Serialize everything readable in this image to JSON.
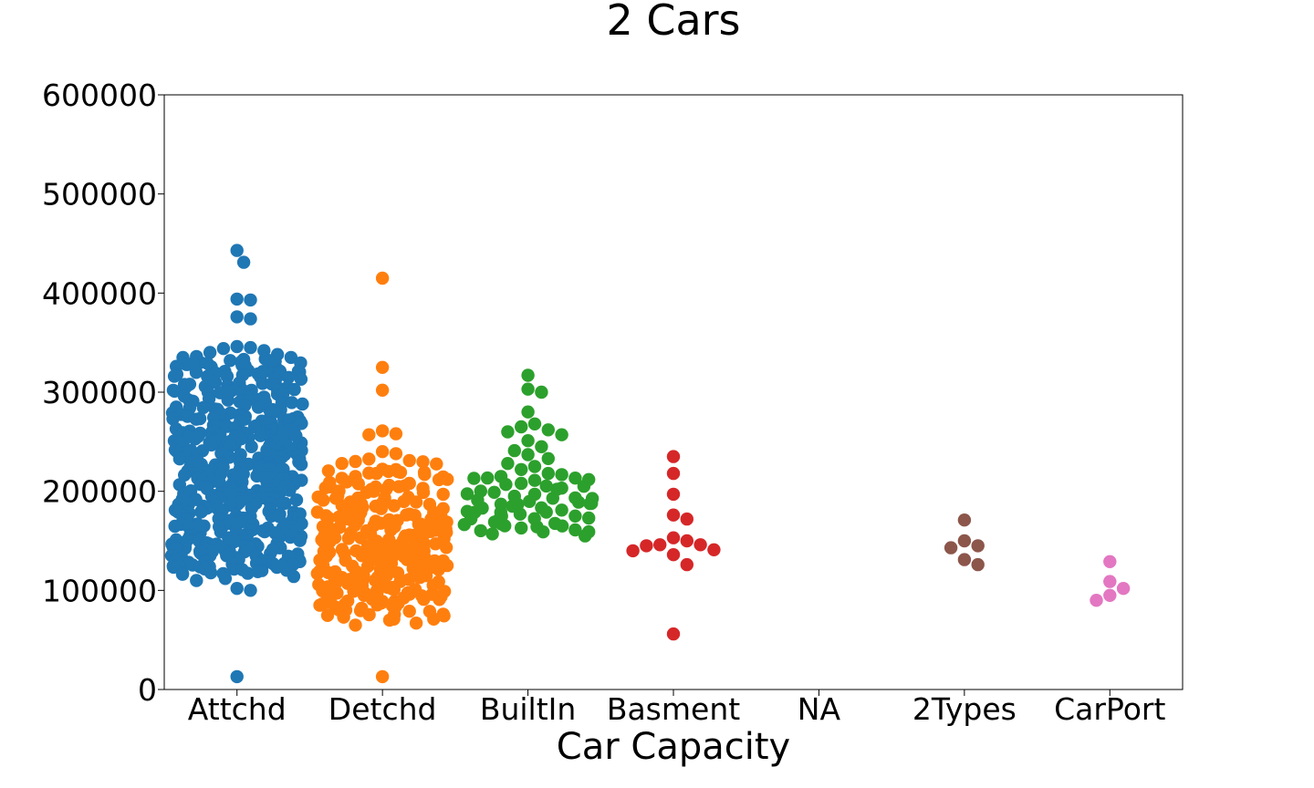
{
  "chart_data": {
    "type": "scatter",
    "subtype": "swarm",
    "title": "2 Cars",
    "xlabel": "Car Capacity",
    "ylabel": "",
    "ylim": [
      0,
      600000
    ],
    "yticks": [
      "0",
      "100000",
      "200000",
      "300000",
      "400000",
      "500000",
      "600000"
    ],
    "grid": false,
    "categories": [
      "Attchd",
      "Detchd",
      "BuiltIn",
      "Basment",
      "NA",
      "2Types",
      "CarPort"
    ],
    "series": [
      {
        "category": "Attchd",
        "color": "#1f77b4",
        "count_estimate": 520,
        "values": [
          443000,
          431000,
          394000,
          393000,
          376000,
          374000,
          346000,
          345000,
          344000,
          342000,
          340000,
          338000,
          335000,
          333000,
          330000,
          328000,
          326000,
          323000,
          321000,
          320000,
          318000,
          316000,
          313000,
          310000,
          308000,
          305000,
          303000,
          302000,
          300000,
          298000,
          295000,
          292000,
          290000,
          288000,
          285000,
          283000,
          281000,
          279000,
          277000,
          275000,
          273000,
          271000,
          269000,
          267000,
          265000,
          263000,
          261000,
          259000,
          257000,
          255000,
          253000,
          251000,
          249000,
          247000,
          245000,
          243000,
          241000,
          239000,
          237000,
          235000,
          233000,
          231000,
          229000,
          227000,
          225000,
          223000,
          221000,
          219000,
          217000,
          215000,
          213000,
          211000,
          209000,
          207000,
          205000,
          203000,
          201000,
          199000,
          197000,
          195000,
          193000,
          191000,
          189000,
          187000,
          185000,
          183000,
          181000,
          179000,
          177000,
          175000,
          173000,
          171000,
          169000,
          167000,
          165000,
          163000,
          161000,
          159000,
          157000,
          155000,
          153000,
          151000,
          149000,
          147000,
          145000,
          143000,
          141000,
          139000,
          137000,
          135000,
          133000,
          131000,
          129000,
          127000,
          125000,
          123000,
          120000,
          117000,
          114000,
          112000,
          110000,
          102000,
          100000,
          13000
        ]
      },
      {
        "category": "Detchd",
        "color": "#ff7f0e",
        "count_estimate": 280,
        "values": [
          415000,
          325000,
          302000,
          261000,
          258000,
          257000,
          240000,
          238000,
          231000,
          228000,
          222000,
          220000,
          218000,
          215000,
          212000,
          209000,
          206000,
          203000,
          200000,
          197000,
          194000,
          191000,
          188000,
          185000,
          182000,
          179000,
          177000,
          175000,
          173000,
          171000,
          169000,
          167000,
          165000,
          163000,
          161000,
          159000,
          157000,
          155000,
          153000,
          151000,
          149000,
          147000,
          145000,
          143000,
          141000,
          139000,
          137000,
          135000,
          133000,
          131000,
          129000,
          127000,
          125000,
          123000,
          121000,
          119000,
          117000,
          115000,
          113000,
          111000,
          109000,
          107000,
          105000,
          103000,
          101000,
          99000,
          97000,
          95000,
          93000,
          91000,
          89000,
          87000,
          85000,
          82000,
          79000,
          76000,
          73000,
          70000,
          67000,
          65000,
          13000
        ]
      },
      {
        "category": "BuiltIn",
        "color": "#2ca02c",
        "count_estimate": 75,
        "values": [
          317000,
          303000,
          300000,
          280000,
          268000,
          265000,
          262000,
          260000,
          257000,
          251000,
          245000,
          241000,
          237000,
          233000,
          228000,
          225000,
          222000,
          218000,
          215000,
          213000,
          211000,
          208000,
          205000,
          202000,
          199000,
          197000,
          195000,
          193000,
          191000,
          189000,
          187000,
          185000,
          183000,
          181000,
          179000,
          177000,
          175000,
          173000,
          171000,
          169000,
          167000,
          165000,
          163000,
          161000,
          159000,
          157000,
          155000
        ]
      },
      {
        "category": "Basment",
        "color": "#d62728",
        "count_estimate": 14,
        "values": [
          235000,
          218000,
          197000,
          176000,
          172000,
          153000,
          150000,
          146000,
          146000,
          145000,
          141000,
          140000,
          136000,
          126000,
          56000
        ]
      },
      {
        "category": "NA",
        "color": "#9467bd",
        "count_estimate": 0,
        "values": []
      },
      {
        "category": "2Types",
        "color": "#8c564b",
        "count_estimate": 6,
        "values": [
          171000,
          150000,
          145000,
          143000,
          131000,
          126000
        ]
      },
      {
        "category": "CarPort",
        "color": "#e377c2",
        "count_estimate": 5,
        "values": [
          129000,
          109000,
          102000,
          95000,
          90000
        ]
      }
    ]
  }
}
